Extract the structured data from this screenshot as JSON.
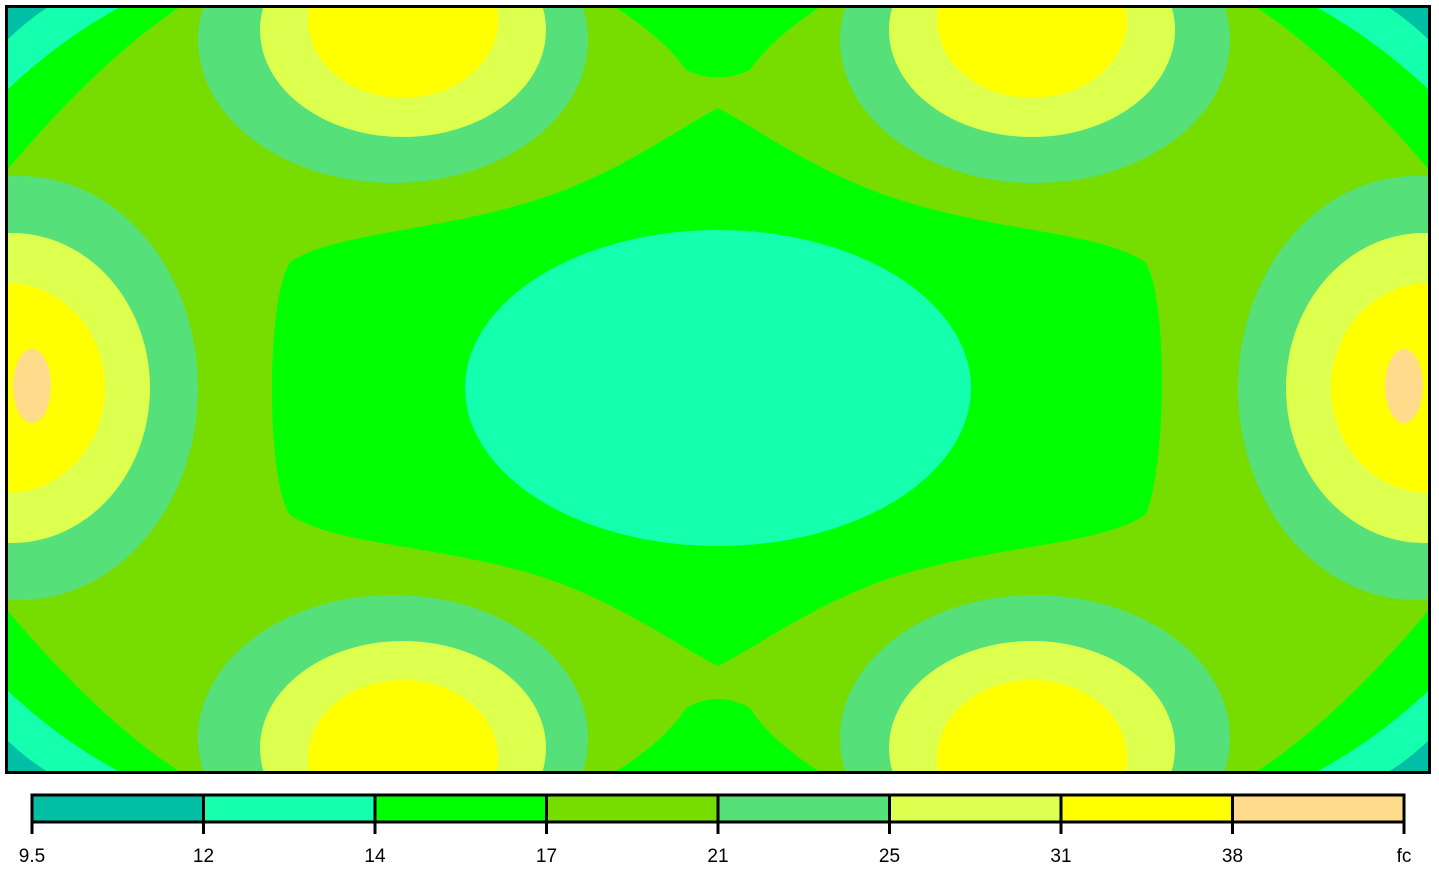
{
  "chart_data": {
    "type": "heatmap",
    "subtype": "filled-contour",
    "title": "",
    "units": "fc",
    "legend": {
      "placement": "bottom",
      "thresholds": [
        9.5,
        12,
        14,
        17,
        21,
        25,
        31,
        38
      ],
      "tick_labels": [
        "9.5",
        "12",
        "14",
        "17",
        "21",
        "25",
        "31",
        "38",
        "fc"
      ],
      "band_colors": [
        "#00BFA5",
        "#14FFAE",
        "#00FF00",
        "#77DD00",
        "#55E07A",
        "#DDFF4E",
        "#FFFF00",
        "#FFDB8C"
      ]
    },
    "regions": [
      {
        "level_band": "21-25",
        "peak": "31-38",
        "peaks_at": "four lobes at top and bottom edges"
      },
      {
        "level_band": "38+",
        "peak": "38+",
        "peaks_at": "left and right edge centers"
      },
      {
        "level_band": "12-14",
        "peaks_at": "center (minimum interior)"
      },
      {
        "level_band": "9.5-12",
        "peaks_at": "corners"
      }
    ]
  }
}
